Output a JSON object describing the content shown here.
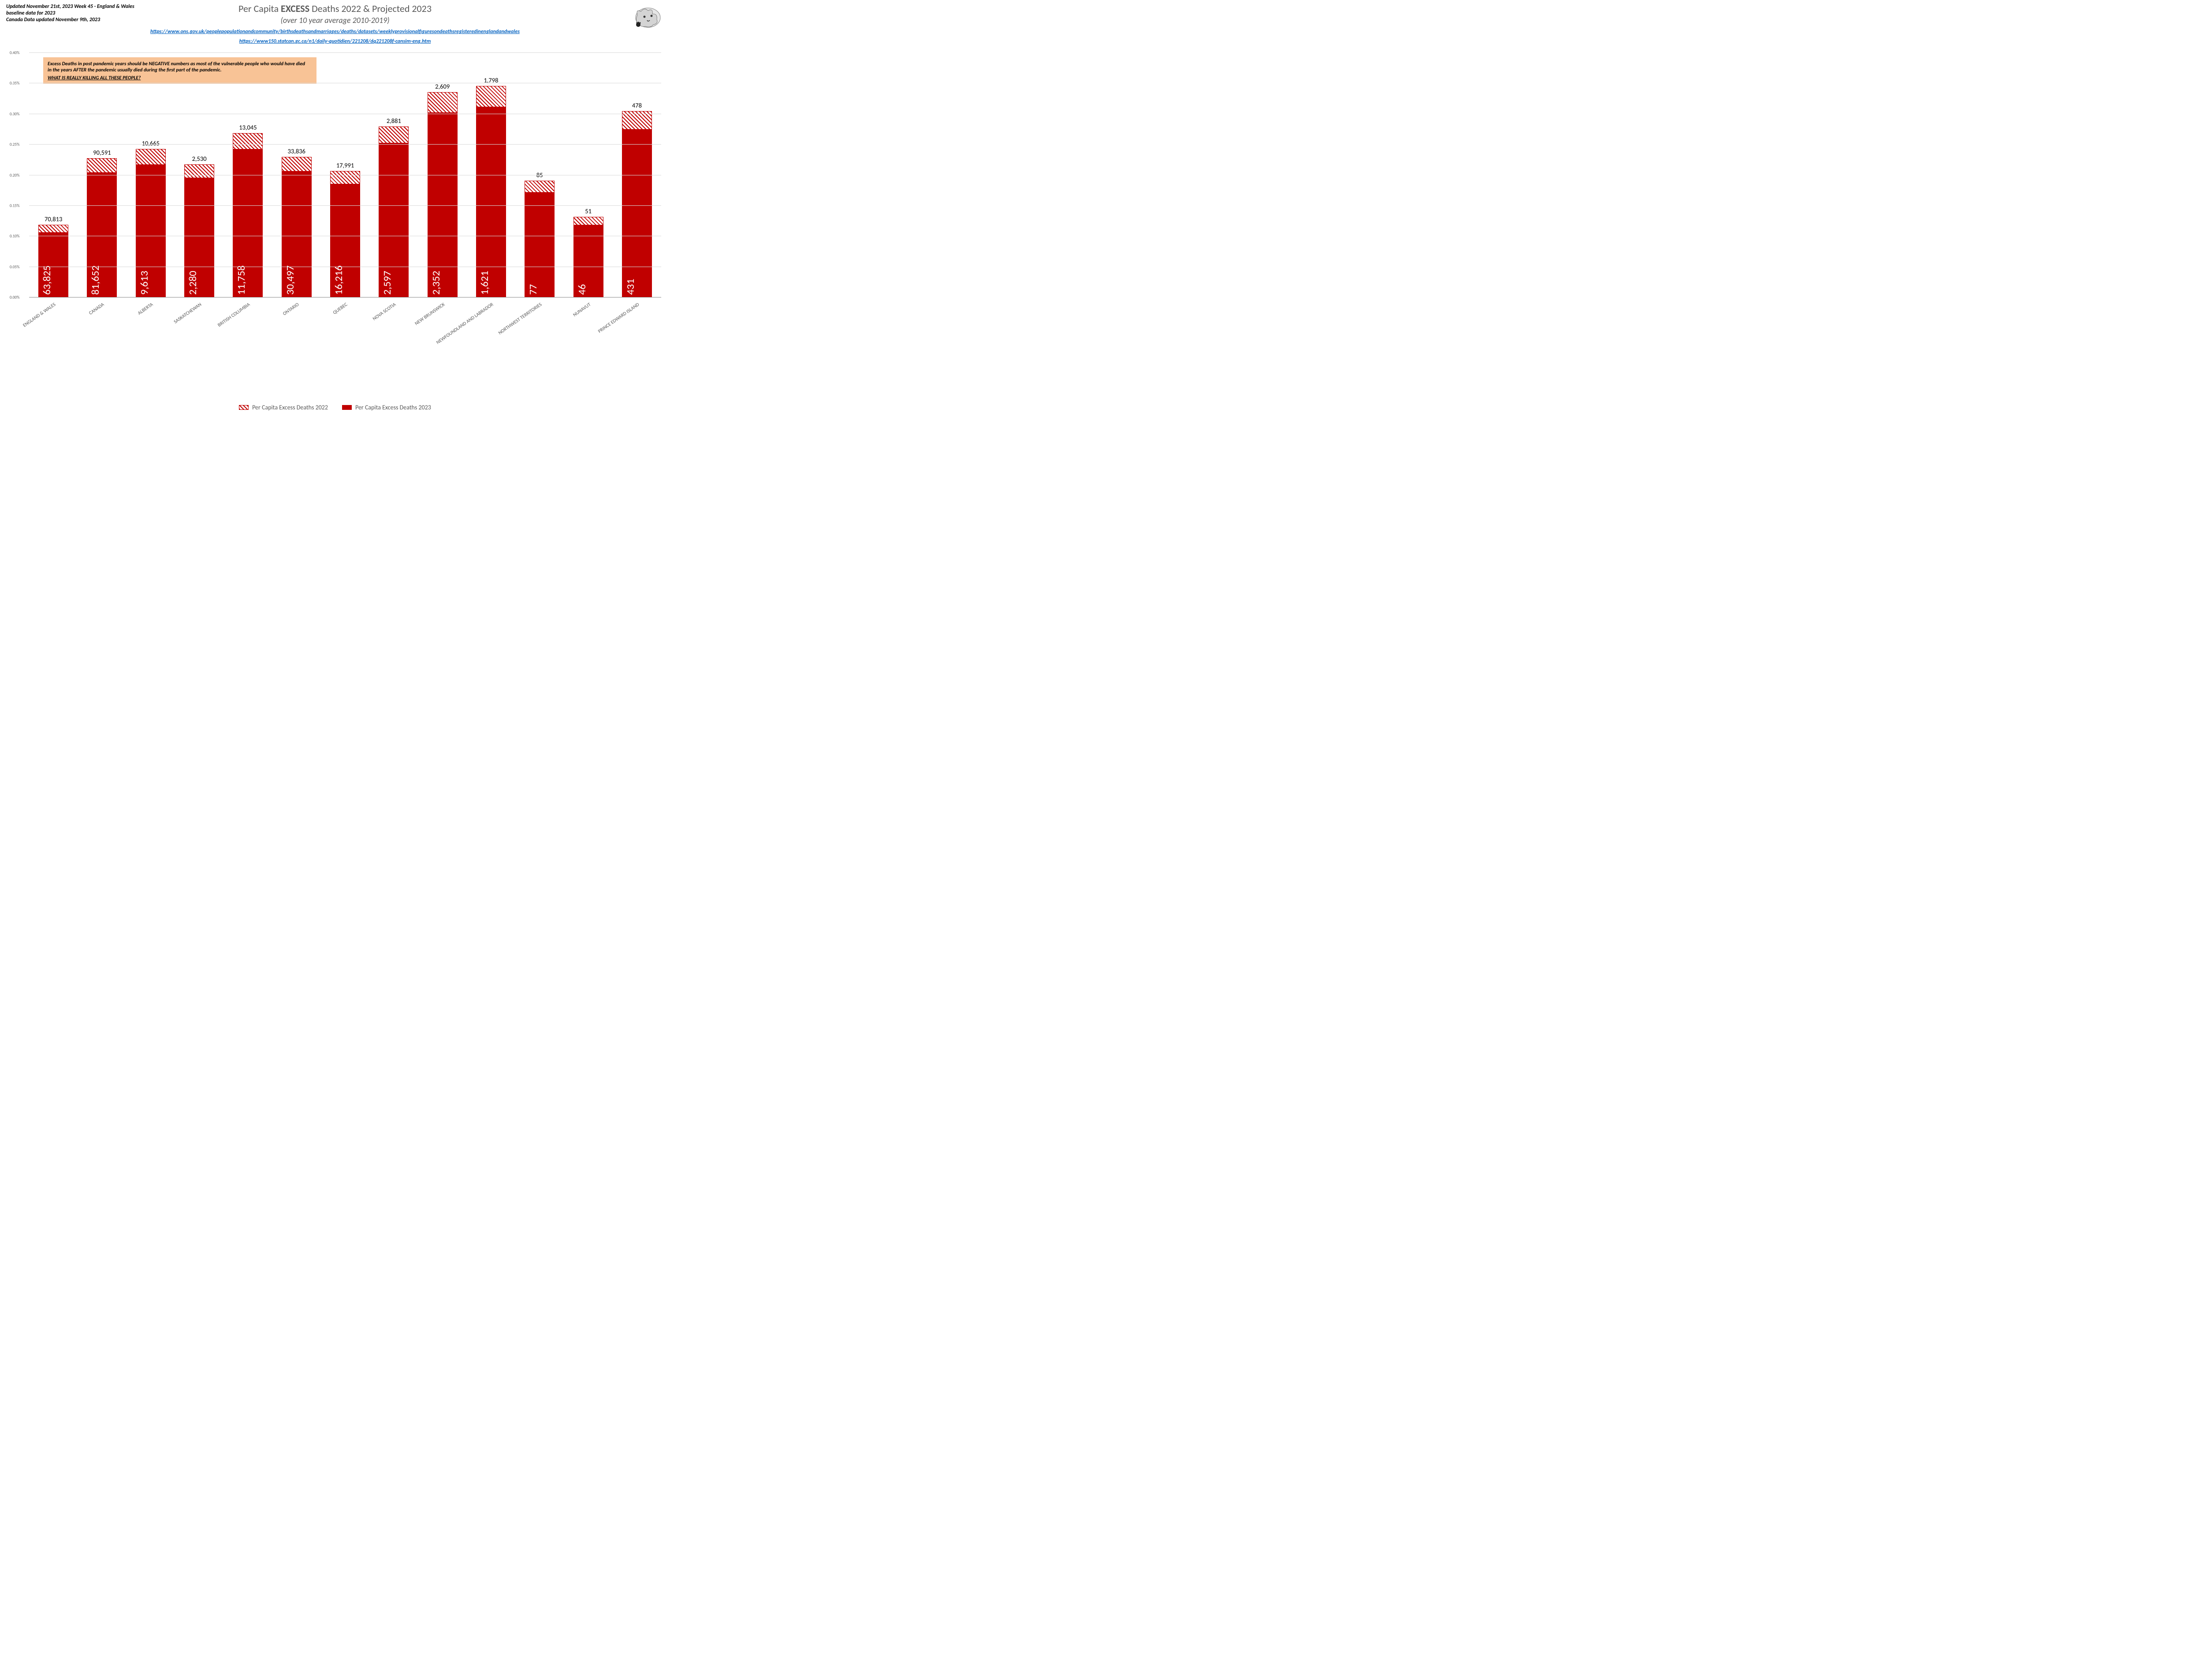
{
  "header_note_lines": [
    "Updated November 21st, 2023 Week 45 - England & Wales",
    "baseline data for 2023",
    "Canada Data updated November 9th, 2023"
  ],
  "title_line1_prefix": "Per Capita ",
  "title_line1_bold": "EXCESS",
  "title_line1_suffix": " Deaths 2022 & Projected 2023",
  "title_line2": "(over 10 year average 2010-2019)",
  "source_link1": "https://www.ons.gov.uk/peoplepopulationandcommunity/birthsdeathsandmarriages/deaths/datasets/weeklyprovisionalfiguresondeathsregisteredinenglandandwales",
  "source_link2": "https://www150.statcan.gc.ca/n1/daily-quotidien/221208/dq221208f-cansim-eng.htm",
  "callout_line1": "Excess Deaths in post pandemic years should be NEGATIVE numbers as most of the vulnerable people who would have died",
  "callout_line2": "in the years AFTER the pandemic usually died during the first part of the pandemic.",
  "callout_question": "WHAT IS REALLY KILLING ALL THESE PEOPLE?",
  "chart": {
    "type": "bar",
    "ylim": [
      0,
      0.4
    ],
    "ytick_step": 0.05,
    "ytick_labels": [
      "0.00%",
      "0.05%",
      "0.10%",
      "0.15%",
      "0.20%",
      "0.25%",
      "0.30%",
      "0.35%",
      "0.40%"
    ],
    "grid_color": "#d9d9d9",
    "baseline_color": "#888888",
    "label_fontsize": 11,
    "value_fontsize_inside": 24,
    "value_fontsize_top": 14.5,
    "value_color_inside": "#ffffff",
    "value_color_top": "#000000",
    "series": {
      "2022": {
        "label": "Per Capita Excess Deaths 2022",
        "fill": "hatched",
        "color": "#c00000"
      },
      "2023": {
        "label": "Per Capita Excess Deaths 2023",
        "fill": "solid",
        "color": "#c00000"
      }
    },
    "categories": [
      {
        "name": "ENGLAND & WALES",
        "abs2022": "70,813",
        "abs2023": "63,825",
        "pct2022": 0.119,
        "pct2023": 0.107
      },
      {
        "name": "CANADA",
        "abs2022": "90,591",
        "abs2023": "81,652",
        "pct2022": 0.228,
        "pct2023": 0.205
      },
      {
        "name": "ALBERTA",
        "abs2022": "10,665",
        "abs2023": "9,613",
        "pct2022": 0.243,
        "pct2023": 0.218
      },
      {
        "name": "SASKATCHEWAN",
        "abs2022": "2,530",
        "abs2023": "2,280",
        "pct2022": 0.218,
        "pct2023": 0.196
      },
      {
        "name": "BRITISH COLUMBIA",
        "abs2022": "13,045",
        "abs2023": "11,758",
        "pct2022": 0.269,
        "pct2023": 0.243
      },
      {
        "name": "ONTARIO",
        "abs2022": "33,836",
        "abs2023": "30,497",
        "pct2022": 0.23,
        "pct2023": 0.207
      },
      {
        "name": "QUEBEC",
        "abs2022": "17,991",
        "abs2023": "16,216",
        "pct2022": 0.207,
        "pct2023": 0.186
      },
      {
        "name": "NOVA SCOTIA",
        "abs2022": "2,881",
        "abs2023": "2,597",
        "pct2022": 0.28,
        "pct2023": 0.253
      },
      {
        "name": "NEW BRUNSWICK",
        "abs2022": "2,609",
        "abs2023": "2,352",
        "pct2022": 0.336,
        "pct2023": 0.303
      },
      {
        "name": "NEWFOUNDLAND AND LABRADOR",
        "abs2022": "1,798",
        "abs2023": "1,621",
        "pct2022": 0.346,
        "pct2023": 0.312
      },
      {
        "name": "NORTHWEST TERRITORIES",
        "abs2022": "85",
        "abs2023": "77",
        "pct2022": 0.191,
        "pct2023": 0.172
      },
      {
        "name": "NUNAVUT",
        "abs2022": "51",
        "abs2023": "46",
        "pct2022": 0.132,
        "pct2023": 0.119
      },
      {
        "name": "PRINCE EDWARD ISLAND",
        "abs2022": "478",
        "abs2023": "431",
        "pct2022": 0.305,
        "pct2023": 0.275
      }
    ]
  },
  "legend": {
    "series2022": "Per Capita Excess Deaths 2022",
    "series2023": "Per Capita Excess Deaths 2023"
  }
}
